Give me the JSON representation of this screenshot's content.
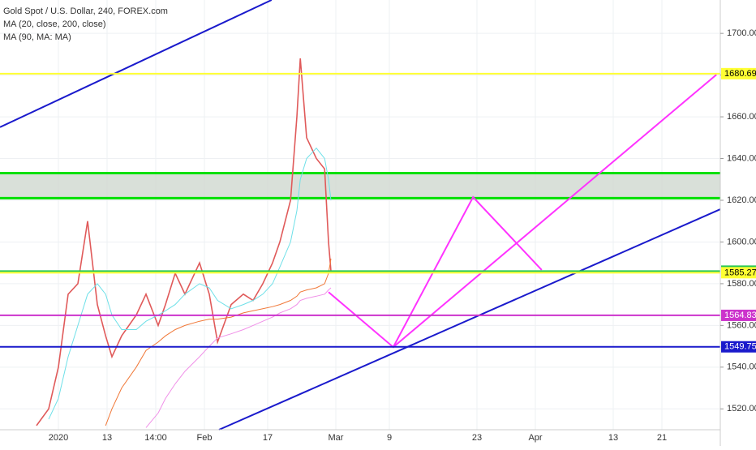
{
  "chart_data": {
    "type": "line",
    "title": "Gold Spot / U.S. Dollar, 240, FOREX.com",
    "indicators": [
      "MA (20, close, 200, close)",
      "MA (90, MA: MA)"
    ],
    "xlim": [
      0,
      148
    ],
    "ylim": [
      1510,
      1716
    ],
    "xticks": [
      {
        "value": 12,
        "label": "2020"
      },
      {
        "value": 22,
        "label": "13"
      },
      {
        "value": 32,
        "label": "14:00"
      },
      {
        "value": 42,
        "label": "Feb"
      },
      {
        "value": 55,
        "label": "17"
      },
      {
        "value": 69,
        "label": "Mar"
      },
      {
        "value": 80,
        "label": "9"
      },
      {
        "value": 98,
        "label": "23"
      },
      {
        "value": 110,
        "label": "Apr"
      },
      {
        "value": 126,
        "label": "13"
      },
      {
        "value": 136,
        "label": "21"
      }
    ],
    "yticks": [
      {
        "value": 1520,
        "label": "1520.00"
      },
      {
        "value": 1540,
        "label": "1540.00"
      },
      {
        "value": 1560,
        "label": "1560.00"
      },
      {
        "value": 1580,
        "label": "1580.00"
      },
      {
        "value": 1600,
        "label": "1600.00"
      },
      {
        "value": 1620,
        "label": "1620.00"
      },
      {
        "value": 1640,
        "label": "1640.00"
      },
      {
        "value": 1660,
        "label": "1660.00"
      },
      {
        "value": 1680,
        "label": "1680.00"
      },
      {
        "value": 1700,
        "label": "1700.00"
      }
    ],
    "x": [
      7.5,
      10,
      12,
      14,
      16,
      18,
      20,
      21.7,
      23,
      25,
      28,
      30,
      32.5,
      34,
      36,
      38,
      41,
      43,
      44.7,
      47.5,
      50,
      52,
      54,
      56,
      57.5,
      59.7,
      61,
      61.7,
      63,
      65,
      66.7,
      67.5,
      68
    ],
    "series": [
      {
        "color": "#e05a5a",
        "values": [
          1512,
          1520,
          1540,
          1575,
          1580,
          1610,
          1570,
          1555,
          1545,
          1555,
          1565,
          1575,
          1560,
          1570,
          1585,
          1575,
          1590,
          1575,
          1552,
          1570,
          1575,
          1572,
          1580,
          1590,
          1600,
          1620,
          1660,
          1688,
          1650,
          1640,
          1635,
          1600,
          1586.03
        ]
      },
      {
        "color": "#6ee0e8",
        "values": [
          null,
          1515,
          1525,
          1545,
          1560,
          1575,
          1580,
          1575,
          1565,
          1558,
          1558,
          1562,
          1565,
          1567,
          1570,
          1575,
          1580,
          1578,
          1572,
          1568,
          1570,
          1572,
          1575,
          1580,
          1588,
          1600,
          1615,
          1630,
          1640,
          1645,
          1640,
          1630,
          1620
        ]
      },
      {
        "color": "#f07838",
        "values": [
          null,
          null,
          null,
          null,
          null,
          null,
          null,
          1512,
          1520,
          1530,
          1540,
          1548,
          1552,
          1555,
          1558,
          1560,
          1562,
          1563,
          1563,
          1564,
          1566,
          1567,
          1568,
          1569,
          1570,
          1572,
          1574,
          1576,
          1577,
          1578,
          1580,
          1585,
          1592
        ]
      },
      {
        "color": "#f090e8",
        "values": [
          null,
          null,
          null,
          null,
          null,
          null,
          null,
          null,
          null,
          null,
          null,
          1511,
          1518,
          1525,
          1532,
          1538,
          1545,
          1550,
          1554,
          1556,
          1558,
          1560,
          1562,
          1564,
          1566,
          1568,
          1570,
          1572,
          1573,
          1574,
          1575,
          1577,
          1578
        ]
      }
    ],
    "zone": {
      "values": [
        1621,
        1633
      ],
      "color": "#00e000"
    },
    "levels": [
      {
        "value": 1680.69,
        "color": "#ffff33",
        "text_color": "#000000"
      },
      {
        "value": 1586.03,
        "color": "#26c655",
        "text_color": "#000000"
      },
      {
        "value": 1585.27,
        "color": "#ffff33",
        "text_color": "#000000"
      },
      {
        "value": 1564.83,
        "color": "#cc33cc",
        "text_color": "#ffffff"
      },
      {
        "value": 1549.75,
        "color": "#1a1acc",
        "text_color": "#ffffff"
      }
    ],
    "drawings": [
      {
        "color": "#1a1acc",
        "points": [
          [
            0,
            1655
          ],
          [
            55.8,
            1716
          ]
        ]
      },
      {
        "color": "#1a1acc",
        "points": [
          [
            45,
            1510
          ],
          [
            148,
            1615.7
          ]
        ]
      },
      {
        "color": "#ff33ff",
        "points": [
          [
            67.5,
            1576
          ],
          [
            80.8,
            1549.6
          ],
          [
            97.2,
            1621.5
          ],
          [
            111.3,
            1586.6
          ]
        ]
      },
      {
        "color": "#ff33ff",
        "points": [
          [
            80.8,
            1549.6
          ],
          [
            147.2,
            1680.2
          ]
        ]
      }
    ]
  }
}
